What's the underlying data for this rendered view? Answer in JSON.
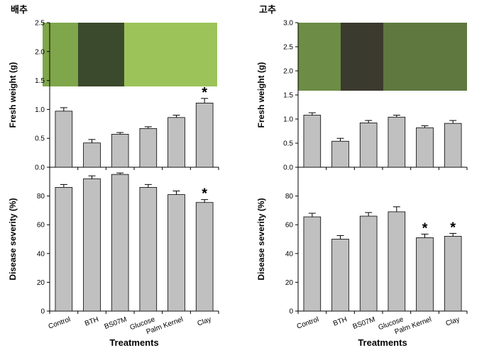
{
  "chart_data": [
    {
      "type": "bar",
      "title": "배추",
      "ylabel": "Fresh weight (g)",
      "values": [
        0.97,
        0.42,
        0.57,
        0.67,
        0.86,
        1.11
      ],
      "errors": [
        0.06,
        0.06,
        0.03,
        0.03,
        0.04,
        0.08
      ],
      "significance": [
        null,
        null,
        null,
        null,
        null,
        "*"
      ],
      "color": "#c0c0c0",
      "ylim": [
        0,
        2.5
      ],
      "yticks": [
        {
          "value": 0,
          "label": "0.0"
        },
        {
          "value": 0.5,
          "label": "0.5"
        },
        {
          "value": 1,
          "label": "1.0"
        },
        {
          "value": 1.5,
          "label": "1.5"
        },
        {
          "value": 2,
          "label": "2.0"
        },
        {
          "value": 2.5,
          "label": "2.5"
        }
      ]
    },
    {
      "type": "bar",
      "ylabel": "Disease severity (%)",
      "xlabel": "Treatments",
      "categories": [
        "Control",
        "BTH",
        "BS07M",
        "Glucose",
        "Palm Kernel",
        "Clay"
      ],
      "values": [
        86,
        92,
        95,
        86,
        81,
        75.5
      ],
      "errors": [
        2,
        2,
        1,
        2,
        2.5,
        2
      ],
      "significance": [
        null,
        null,
        null,
        null,
        null,
        "*"
      ],
      "color": "#c0c0c0",
      "ylim": [
        0,
        100
      ],
      "yticks": [
        0,
        20,
        40,
        60,
        80
      ]
    },
    {
      "type": "bar",
      "title": "고추",
      "ylabel": "Fresh weight (g)",
      "values": [
        1.08,
        0.54,
        0.92,
        1.04,
        0.82,
        0.91
      ],
      "errors": [
        0.05,
        0.06,
        0.05,
        0.04,
        0.04,
        0.06
      ],
      "significance": [
        null,
        null,
        null,
        null,
        null,
        null
      ],
      "color": "#c0c0c0",
      "ylim": [
        0,
        3
      ],
      "yticks": [
        {
          "value": 0,
          "label": "0.0"
        },
        {
          "value": 0.5,
          "label": "0.5"
        },
        {
          "value": 1,
          "label": "1.0"
        },
        {
          "value": 1.5,
          "label": "1.5"
        },
        {
          "value": 2,
          "label": "2.0"
        },
        {
          "value": 2.5,
          "label": "2.5"
        },
        {
          "value": 3,
          "label": "3.0"
        }
      ]
    },
    {
      "type": "bar",
      "ylabel": "Disease severity (%)",
      "xlabel": "Treatments",
      "categories": [
        "Control",
        "BTH",
        "BS07M",
        "Glucose",
        "Palm Kernel",
        "Clay"
      ],
      "values": [
        65.5,
        50,
        66,
        69,
        51,
        52
      ],
      "errors": [
        2.5,
        2.5,
        2.5,
        3.5,
        2.5,
        2
      ],
      "significance": [
        null,
        null,
        null,
        null,
        "*",
        "*"
      ],
      "color": "#c0c0c0",
      "ylim": [
        0,
        100
      ],
      "yticks": [
        0,
        20,
        40,
        60,
        80
      ]
    }
  ]
}
